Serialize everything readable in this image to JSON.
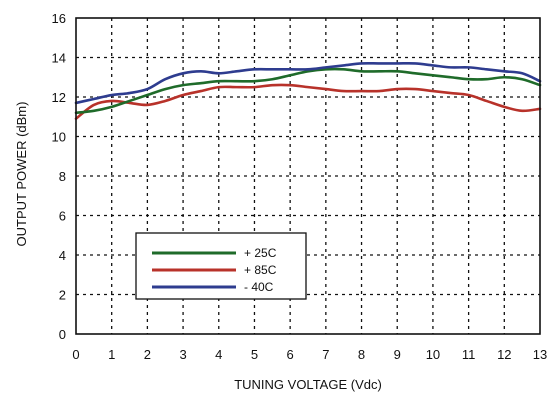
{
  "chart_data": {
    "type": "line",
    "title": "",
    "xlabel": "TUNING VOLTAGE (Vdc)",
    "ylabel": "OUTPUT POWER (dBm)",
    "xlim": [
      0,
      13
    ],
    "ylim": [
      0,
      16
    ],
    "xticks": [
      "0",
      "1",
      "2",
      "3",
      "4",
      "5",
      "6",
      "7",
      "8",
      "9",
      "10",
      "11",
      "12",
      "13"
    ],
    "yticks": [
      "0",
      "2",
      "4",
      "6",
      "8",
      "10",
      "12",
      "14",
      "16"
    ],
    "grid": true,
    "legend_position": "center-left",
    "series": [
      {
        "name": "+ 25C",
        "color": "#1f6b2a",
        "x": [
          0,
          0.5,
          1,
          1.5,
          2,
          2.5,
          3,
          3.5,
          4,
          4.5,
          5,
          5.5,
          6,
          6.5,
          7,
          7.5,
          8,
          8.5,
          9,
          9.5,
          10,
          10.5,
          11,
          11.5,
          12,
          12.5,
          13
        ],
        "y": [
          11.2,
          11.3,
          11.5,
          11.8,
          12.1,
          12.4,
          12.6,
          12.7,
          12.8,
          12.8,
          12.8,
          12.9,
          13.1,
          13.3,
          13.4,
          13.4,
          13.3,
          13.3,
          13.3,
          13.2,
          13.1,
          13.0,
          12.9,
          12.9,
          13.0,
          12.9,
          12.6
        ]
      },
      {
        "name": "+ 85C",
        "color": "#b8322a",
        "x": [
          0,
          0.5,
          1,
          1.5,
          2,
          2.5,
          3,
          3.5,
          4,
          4.5,
          5,
          5.5,
          6,
          6.5,
          7,
          7.5,
          8,
          8.5,
          9,
          9.5,
          10,
          10.5,
          11,
          11.5,
          12,
          12.5,
          13
        ],
        "y": [
          10.9,
          11.6,
          11.8,
          11.7,
          11.6,
          11.8,
          12.1,
          12.3,
          12.5,
          12.5,
          12.5,
          12.6,
          12.6,
          12.5,
          12.4,
          12.3,
          12.3,
          12.3,
          12.4,
          12.4,
          12.3,
          12.2,
          12.1,
          11.8,
          11.5,
          11.3,
          11.4
        ]
      },
      {
        "name": "- 40C",
        "color": "#2e3c8f",
        "x": [
          0,
          0.5,
          1,
          1.5,
          2,
          2.5,
          3,
          3.5,
          4,
          4.5,
          5,
          5.5,
          6,
          6.5,
          7,
          7.5,
          8,
          8.5,
          9,
          9.5,
          10,
          10.5,
          11,
          11.5,
          12,
          12.5,
          13
        ],
        "y": [
          11.7,
          11.9,
          12.1,
          12.2,
          12.4,
          12.9,
          13.2,
          13.3,
          13.2,
          13.3,
          13.4,
          13.4,
          13.4,
          13.4,
          13.5,
          13.6,
          13.7,
          13.7,
          13.7,
          13.7,
          13.6,
          13.5,
          13.5,
          13.4,
          13.3,
          13.2,
          12.8
        ]
      }
    ]
  }
}
